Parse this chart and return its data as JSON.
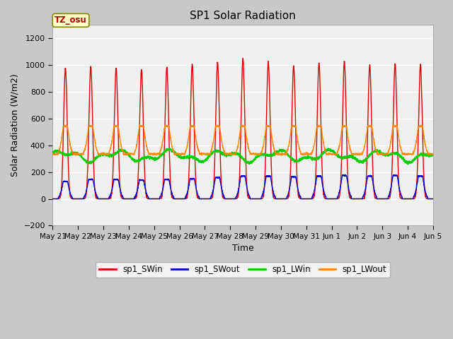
{
  "title": "SP1 Solar Radiation",
  "xlabel": "Time",
  "ylabel": "Solar Radiation (W/m2)",
  "ylim": [
    -200,
    1300
  ],
  "yticks": [
    -200,
    0,
    200,
    400,
    600,
    800,
    1000,
    1200
  ],
  "fig_bg_color": "#c8c8c8",
  "plot_bg_color": "#f0f0f0",
  "grid_color": "#ffffff",
  "tz_label": "TZ_osu",
  "tz_box_color": "#ffffcc",
  "tz_text_color": "#aa0000",
  "tz_border_color": "#888800",
  "legend_entries": [
    "sp1_SWin",
    "sp1_SWout",
    "sp1_LWin",
    "sp1_LWout"
  ],
  "line_colors": [
    "#dd0000",
    "#0000cc",
    "#00cc00",
    "#ff8800"
  ],
  "num_days": 15,
  "sw_in_peaks": [
    975,
    990,
    975,
    965,
    985,
    1005,
    1020,
    1050,
    1025,
    995,
    1015,
    1025,
    1000,
    1010,
    1005
  ],
  "sw_out_peaks": [
    130,
    145,
    145,
    140,
    145,
    150,
    160,
    170,
    170,
    165,
    170,
    175,
    170,
    175,
    170
  ],
  "lw_in_base": 320,
  "lw_out_base": 335,
  "lw_out_peak": 580,
  "tick_labels": [
    "May 21",
    "May 22",
    "May 23",
    "May 24",
    "May 25",
    "May 26",
    "May 27",
    "May 28",
    "May 29",
    "May 30",
    "May 31",
    "Jun 1",
    "Jun 2",
    "Jun 3",
    "Jun 4",
    "Jun 5"
  ],
  "figsize": [
    6.4,
    4.8
  ],
  "dpi": 100
}
